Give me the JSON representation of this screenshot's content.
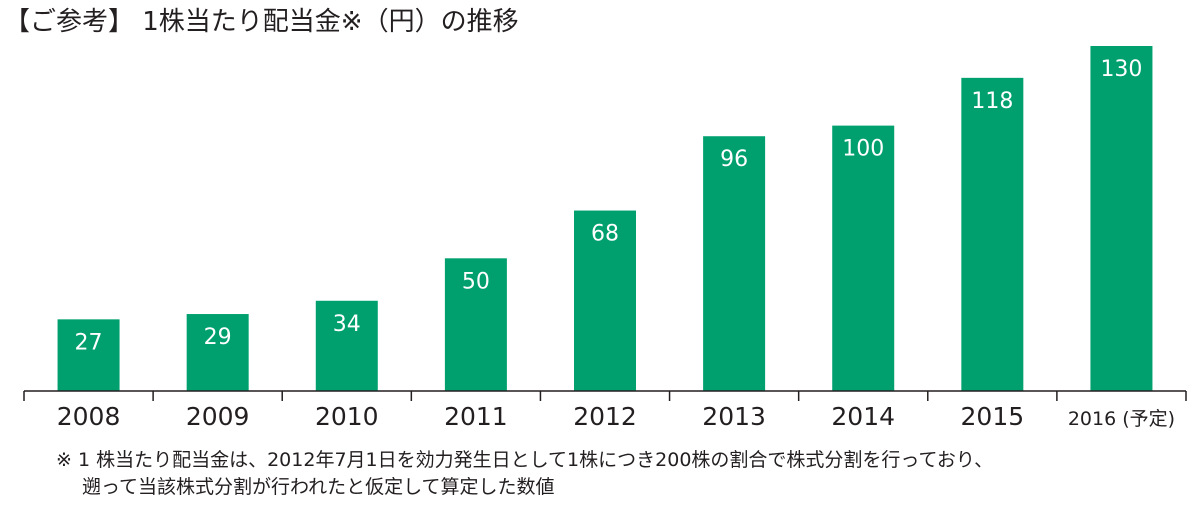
{
  "chart_data": {
    "type": "bar",
    "title": "【ご参考】 1株当たり配当金※（円）の推移",
    "categories": [
      "2008",
      "2009",
      "2010",
      "2011",
      "2012",
      "2013",
      "2014",
      "2015",
      "2016 (予定)"
    ],
    "values": [
      27,
      29,
      34,
      50,
      68,
      96,
      100,
      118,
      130
    ],
    "ylim": [
      0,
      130
    ],
    "xlabel": "",
    "ylabel": "",
    "grid": false,
    "bar_color": "#00a06e",
    "label_color": "#ffffff",
    "axis_color": "#231f20"
  },
  "footnote": {
    "line1": "※ 1 株当たり配当金は、2012年7月1日を効力発生日として1株につき200株の割合で株式分割を行っており、",
    "line2": "遡って当該株式分割が行われたと仮定して算定した数値"
  }
}
